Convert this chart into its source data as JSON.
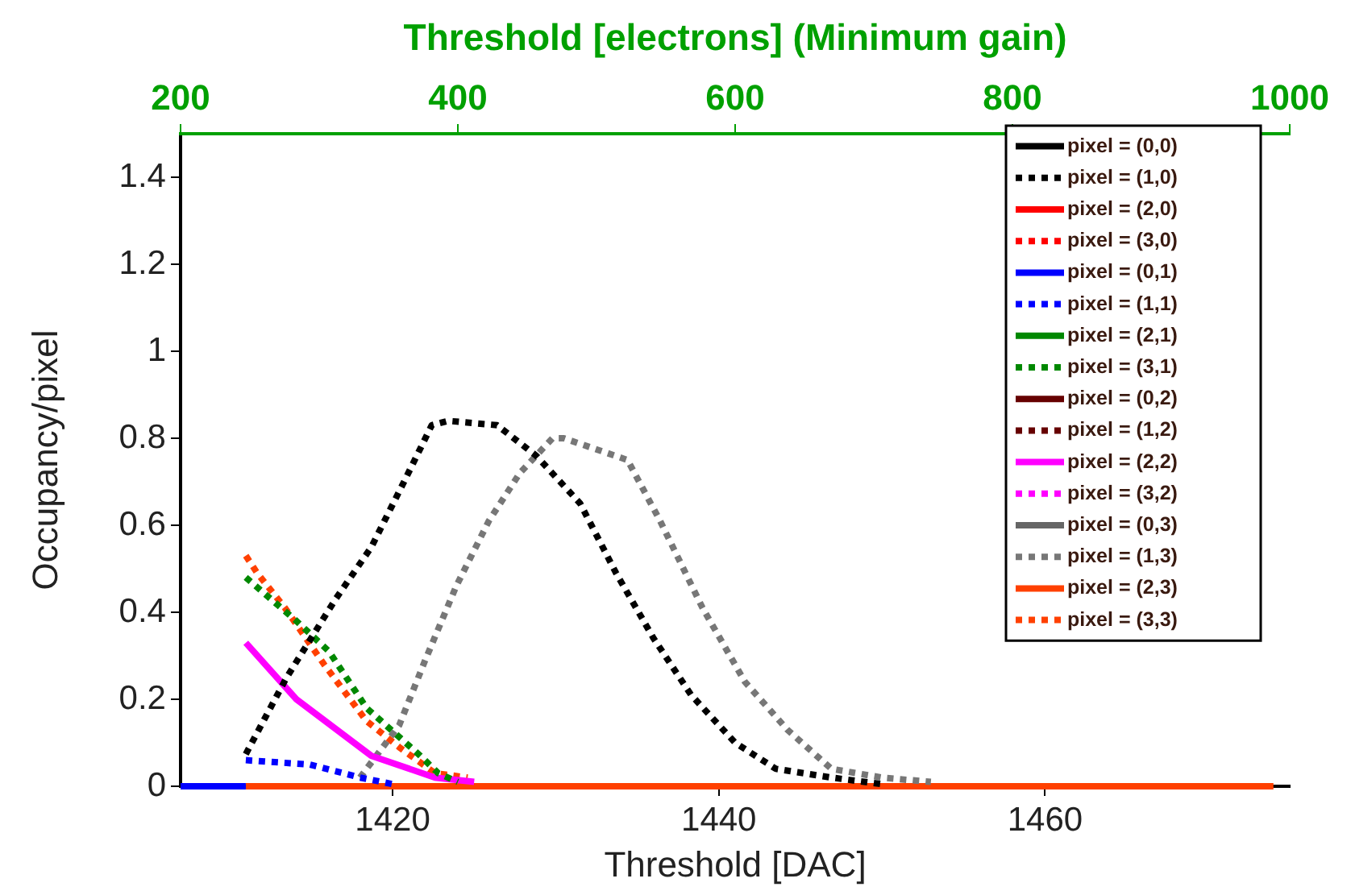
{
  "chart_data": {
    "type": "line",
    "xlabel": "Threshold [DAC]",
    "ylabel": "Occupancy/pixel",
    "x2label": "Threshold [electrons] (Minimum gain)",
    "xlim": [
      1407,
      1475
    ],
    "xticks": [
      1420,
      1440,
      1460
    ],
    "x2lim": [
      200,
      1000
    ],
    "x2ticks": [
      200,
      400,
      600,
      800,
      1000
    ],
    "ylim": [
      0,
      1.5
    ],
    "yticks": [
      0,
      0.2,
      0.4,
      0.6,
      0.8,
      1,
      1.2,
      1.4
    ],
    "grid": false,
    "legend": "top right",
    "series": [
      {
        "name": "pixel = (0,0)",
        "color": "#000000",
        "line_style": "solid"
      },
      {
        "name": "pixel = (1,0)",
        "color": "#000000",
        "line_style": "dotted",
        "x": [
          1411,
          1413.5,
          1416.5,
          1418.7,
          1420.7,
          1422.4,
          1423.4,
          1426.4,
          1428.8,
          1431.5,
          1433.7,
          1436,
          1438.3,
          1441,
          1443.5,
          1446.9,
          1450
        ],
        "values": [
          0.074,
          0.25,
          0.43,
          0.55,
          0.7,
          0.83,
          0.84,
          0.83,
          0.76,
          0.65,
          0.49,
          0.34,
          0.21,
          0.1,
          0.04,
          0.02,
          0.005
        ]
      },
      {
        "name": "pixel = (2,0)",
        "color": "#ff0000",
        "line_style": "solid"
      },
      {
        "name": "pixel = (3,0)",
        "color": "#ff0000",
        "line_style": "dotted"
      },
      {
        "name": "pixel = (0,1)",
        "color": "#0000ff",
        "line_style": "solid",
        "x": [
          1407,
          1411
        ],
        "values": [
          0,
          0
        ]
      },
      {
        "name": "pixel = (1,1)",
        "color": "#0000ff",
        "line_style": "dotted",
        "x": [
          1411,
          1414.9,
          1418,
          1420
        ],
        "values": [
          0.06,
          0.05,
          0.02,
          0.005
        ]
      },
      {
        "name": "pixel = (2,1)",
        "color": "#008800",
        "line_style": "solid"
      },
      {
        "name": "pixel = (3,1)",
        "color": "#008800",
        "line_style": "dotted",
        "x": [
          1411,
          1414.1,
          1416.1,
          1418.4,
          1420.5,
          1421.7,
          1422.8,
          1424
        ],
        "values": [
          0.48,
          0.38,
          0.31,
          0.18,
          0.11,
          0.07,
          0.03,
          0.01
        ]
      },
      {
        "name": "pixel = (0,2)",
        "color": "#660000",
        "line_style": "solid"
      },
      {
        "name": "pixel = (1,2)",
        "color": "#660000",
        "line_style": "dotted"
      },
      {
        "name": "pixel = (2,2)",
        "color": "#ff00ff",
        "line_style": "solid",
        "x": [
          1411,
          1414.1,
          1418.7,
          1422.6,
          1425
        ],
        "values": [
          0.33,
          0.2,
          0.07,
          0.02,
          0.01
        ]
      },
      {
        "name": "pixel = (3,2)",
        "color": "#ff00ff",
        "line_style": "dotted"
      },
      {
        "name": "pixel = (0,3)",
        "color": "#666666",
        "line_style": "solid"
      },
      {
        "name": "pixel = (1,3)",
        "color": "#777777",
        "line_style": "dotted",
        "x": [
          1418,
          1420.4,
          1422,
          1423.9,
          1425.9,
          1427.8,
          1429.8,
          1430.5,
          1434.4,
          1436.4,
          1439,
          1441.6,
          1444.2,
          1446.9,
          1450,
          1453
        ],
        "values": [
          0.02,
          0.14,
          0.29,
          0.46,
          0.61,
          0.72,
          0.8,
          0.8,
          0.75,
          0.61,
          0.41,
          0.24,
          0.13,
          0.04,
          0.02,
          0.01
        ]
      },
      {
        "name": "pixel = (2,3)",
        "color": "#ff4000",
        "line_style": "solid",
        "x": [
          1411,
          1474
        ],
        "values": [
          0,
          0
        ]
      },
      {
        "name": "pixel = (3,3)",
        "color": "#ff4000",
        "line_style": "dotted",
        "x": [
          1411,
          1411.7,
          1413.4,
          1415.8,
          1418.4,
          1420.4,
          1422.6,
          1424.6
        ],
        "values": [
          0.53,
          0.49,
          0.41,
          0.28,
          0.15,
          0.09,
          0.03,
          0.02
        ]
      }
    ]
  }
}
